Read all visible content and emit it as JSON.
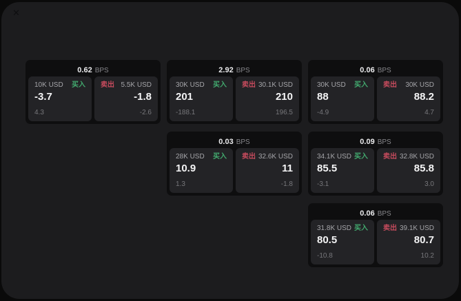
{
  "labels": {
    "bps_unit": "BPS",
    "buy": "买入",
    "sell": "卖出"
  },
  "icons": {
    "corner_glyph": "✕"
  },
  "colors": {
    "window_bg": "#1c1c1e",
    "card_bg": "#0e0e0f",
    "panel_bg": "#232326",
    "buy_green": "#42a96e",
    "sell_red": "#c64b5d"
  },
  "cards": [
    {
      "col": 1,
      "row": 1,
      "bps": "0.62",
      "buy": {
        "amount": "10K USD",
        "value": "-3.7",
        "delta": "4.3"
      },
      "sell": {
        "amount": "5.5K USD",
        "value": "-1.8",
        "delta": "-2.6"
      }
    },
    {
      "col": 2,
      "row": 1,
      "bps": "2.92",
      "buy": {
        "amount": "30K USD",
        "value": "201",
        "delta": "-188.1"
      },
      "sell": {
        "amount": "30.1K USD",
        "value": "210",
        "delta": "196.5"
      }
    },
    {
      "col": 3,
      "row": 1,
      "bps": "0.06",
      "buy": {
        "amount": "30K USD",
        "value": "88",
        "delta": "-4.9"
      },
      "sell": {
        "amount": "30K USD",
        "value": "88.2",
        "delta": "4.7"
      }
    },
    {
      "col": 2,
      "row": 2,
      "bps": "0.03",
      "buy": {
        "amount": "28K USD",
        "value": "10.9",
        "delta": "1.3"
      },
      "sell": {
        "amount": "32.6K USD",
        "value": "11",
        "delta": "-1.8"
      }
    },
    {
      "col": 3,
      "row": 2,
      "bps": "0.09",
      "buy": {
        "amount": "34.1K USD",
        "value": "85.5",
        "delta": "-3.1"
      },
      "sell": {
        "amount": "32.8K USD",
        "value": "85.8",
        "delta": "3.0"
      }
    },
    {
      "col": 3,
      "row": 3,
      "bps": "0.06",
      "buy": {
        "amount": "31.8K USD",
        "value": "80.5",
        "delta": "-10.8"
      },
      "sell": {
        "amount": "39.1K USD",
        "value": "80.7",
        "delta": "10.2"
      }
    }
  ]
}
